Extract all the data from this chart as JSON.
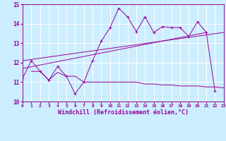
{
  "background_color": "#cceeff",
  "grid_color": "#ffffff",
  "line_color": "#990099",
  "x_min": 0,
  "x_max": 23,
  "y_min": 10,
  "y_max": 15,
  "xlabel": "Windchill (Refroidissement éolien,°C)",
  "xlabel_fontsize": 6.0,
  "xtick_fontsize": 4.5,
  "ytick_fontsize": 5.5,
  "main_x": [
    0,
    1,
    2,
    3,
    4,
    5,
    6,
    7,
    8,
    9,
    10,
    11,
    12,
    13,
    14,
    15,
    16,
    17,
    18,
    19,
    20,
    21,
    22
  ],
  "main_y": [
    11.2,
    12.1,
    11.55,
    11.1,
    11.8,
    11.3,
    10.4,
    11.0,
    12.1,
    13.1,
    13.8,
    14.8,
    14.35,
    13.6,
    14.35,
    13.55,
    13.85,
    13.8,
    13.8,
    13.35,
    14.1,
    13.55,
    10.55
  ],
  "trend1_x": [
    0,
    21
  ],
  "trend1_y": [
    11.7,
    13.55
  ],
  "trend2_x": [
    0,
    23
  ],
  "trend2_y": [
    12.1,
    13.55
  ],
  "flat_x": [
    1,
    2,
    3,
    4,
    5,
    6,
    7,
    8,
    9,
    10,
    11,
    12,
    13,
    14,
    15,
    16,
    17,
    18,
    19,
    20,
    21,
    22,
    23
  ],
  "flat_y": [
    11.55,
    11.55,
    11.1,
    11.5,
    11.3,
    11.3,
    11.0,
    11.0,
    11.0,
    11.0,
    11.0,
    11.0,
    11.0,
    10.9,
    10.9,
    10.85,
    10.85,
    10.8,
    10.8,
    10.8,
    10.75,
    10.75,
    10.7
  ]
}
